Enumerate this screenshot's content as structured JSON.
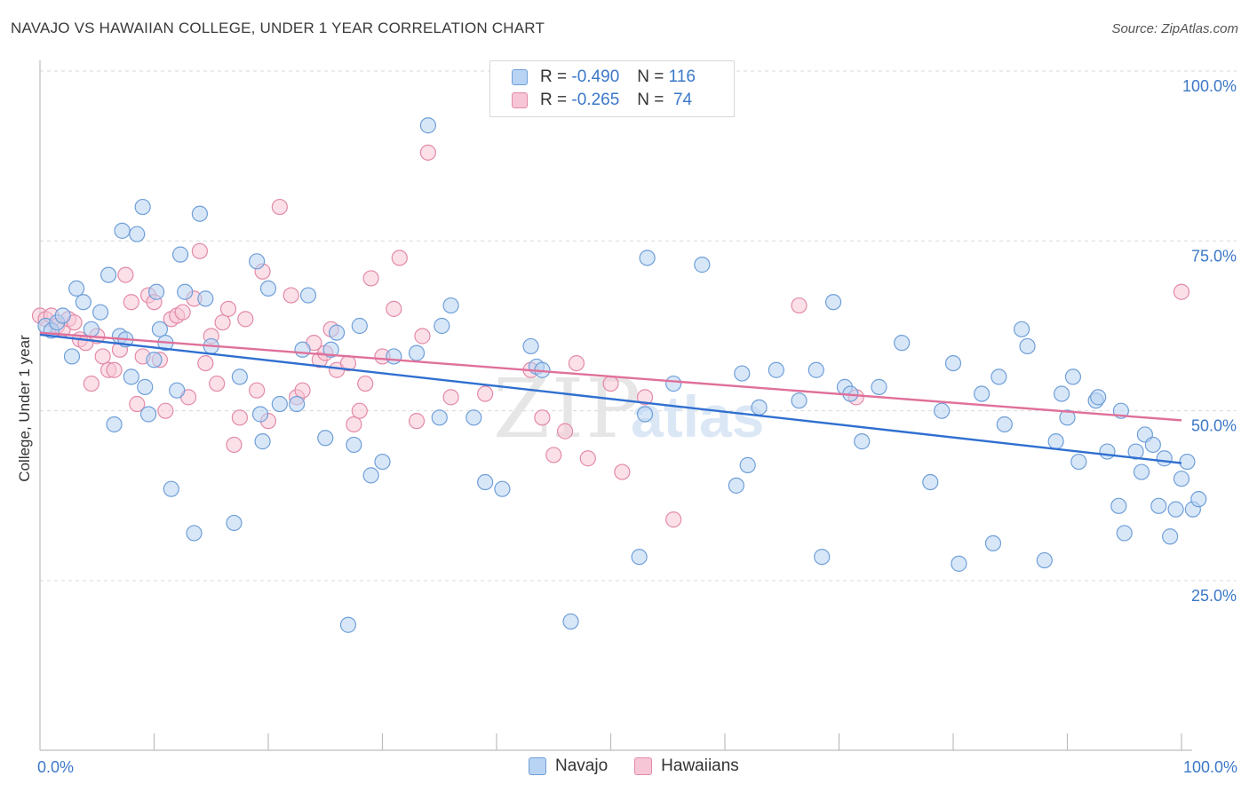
{
  "title": "NAVAJO VS HAWAIIAN COLLEGE, UNDER 1 YEAR CORRELATION CHART",
  "source": "Source: ZipAtlas.com",
  "legend": {
    "navajo": {
      "r_label": "R = ",
      "r_value": "-0.490",
      "n_label": "N = ",
      "n_value": "116"
    },
    "hawaiians": {
      "r_label": "R = ",
      "r_value": "-0.265",
      "n_label": "N = ",
      "n_value": "74"
    }
  },
  "colors": {
    "navajo_fill": "#b8d3f3",
    "navajo_stroke": "#6f9fd8",
    "navajo_line": "#2f6fd0",
    "hawaiians_fill": "#f7c6d6",
    "hawaiians_stroke": "#e38aa8",
    "hawaiians_line": "#e0709a",
    "tick_label": "#3b78c8"
  },
  "chart_data": {
    "type": "scatter",
    "title": "NAVAJO VS HAWAIIAN COLLEGE, UNDER 1 YEAR CORRELATION CHART",
    "xlabel": "",
    "ylabel": "College, Under 1 year",
    "xlim": [
      0,
      100
    ],
    "ylim": [
      0,
      105
    ],
    "x_ticks": [
      "0.0%",
      "100.0%"
    ],
    "y_ticks": [
      {
        "value": 25,
        "label": "25.0%"
      },
      {
        "value": 50,
        "label": "50.0%"
      },
      {
        "value": 75,
        "label": "75.0%"
      },
      {
        "value": 100,
        "label": "100.0%"
      }
    ],
    "grid": true,
    "legend_position": "top-center",
    "series": [
      {
        "name": "Navajo",
        "trend": {
          "x": [
            0,
            100
          ],
          "y": [
            61.2,
            42.3
          ]
        },
        "points": [
          [
            0.5,
            62.5
          ],
          [
            1,
            61.8
          ],
          [
            1.5,
            63
          ],
          [
            2,
            64
          ],
          [
            2.8,
            58
          ],
          [
            3.2,
            68
          ],
          [
            3.8,
            66
          ],
          [
            4.5,
            62
          ],
          [
            5.3,
            64.5
          ],
          [
            6,
            70
          ],
          [
            6.5,
            48
          ],
          [
            7,
            61
          ],
          [
            7.2,
            76.5
          ],
          [
            7.5,
            60.5
          ],
          [
            8,
            55
          ],
          [
            8.5,
            76
          ],
          [
            9.2,
            53.5
          ],
          [
            9,
            80
          ],
          [
            9.5,
            49.5
          ],
          [
            10,
            57.5
          ],
          [
            10.2,
            67.5
          ],
          [
            10.5,
            62
          ],
          [
            11,
            60
          ],
          [
            11.5,
            38.5
          ],
          [
            12,
            53
          ],
          [
            12.3,
            73
          ],
          [
            12.7,
            67.5
          ],
          [
            13.5,
            32
          ],
          [
            14,
            79
          ],
          [
            14.5,
            66.5
          ],
          [
            15,
            59.5
          ],
          [
            17,
            33.5
          ],
          [
            17.5,
            55
          ],
          [
            19,
            72
          ],
          [
            19.3,
            49.5
          ],
          [
            19.5,
            45.5
          ],
          [
            20,
            68
          ],
          [
            21,
            51
          ],
          [
            22.5,
            51
          ],
          [
            23,
            59
          ],
          [
            23.5,
            67
          ],
          [
            25,
            46
          ],
          [
            25.5,
            59
          ],
          [
            26,
            61.5
          ],
          [
            27,
            18.5
          ],
          [
            27.5,
            45
          ],
          [
            28,
            62.5
          ],
          [
            29,
            40.5
          ],
          [
            30,
            42.5
          ],
          [
            31,
            58
          ],
          [
            33,
            58.5
          ],
          [
            34,
            92
          ],
          [
            35,
            49
          ],
          [
            35.2,
            62.5
          ],
          [
            36,
            65.5
          ],
          [
            38,
            49
          ],
          [
            39,
            39.5
          ],
          [
            40.5,
            38.5
          ],
          [
            43,
            59.5
          ],
          [
            43.5,
            56.5
          ],
          [
            44,
            56
          ],
          [
            46.5,
            19
          ],
          [
            52.5,
            28.5
          ],
          [
            53,
            49.5
          ],
          [
            53.2,
            72.5
          ],
          [
            55.5,
            54
          ],
          [
            58,
            71.5
          ],
          [
            61,
            39
          ],
          [
            61.5,
            55.5
          ],
          [
            62,
            42
          ],
          [
            63,
            50.5
          ],
          [
            64.5,
            56
          ],
          [
            66.5,
            51.5
          ],
          [
            68,
            56
          ],
          [
            68.5,
            28.5
          ],
          [
            69.5,
            66
          ],
          [
            70.5,
            53.5
          ],
          [
            71,
            52.5
          ],
          [
            72,
            45.5
          ],
          [
            73.5,
            53.5
          ],
          [
            75.5,
            60
          ],
          [
            78,
            39.5
          ],
          [
            79,
            50
          ],
          [
            80,
            57
          ],
          [
            80.5,
            27.5
          ],
          [
            82.5,
            52.5
          ],
          [
            83.5,
            30.5
          ],
          [
            84,
            55
          ],
          [
            84.5,
            48
          ],
          [
            86,
            62
          ],
          [
            86.5,
            59.5
          ],
          [
            88,
            28
          ],
          [
            89,
            45.5
          ],
          [
            89.5,
            52.5
          ],
          [
            90,
            49
          ],
          [
            90.5,
            55
          ],
          [
            91,
            42.5
          ],
          [
            92.5,
            51.5
          ],
          [
            92.7,
            52
          ],
          [
            93.5,
            44
          ],
          [
            94.5,
            36
          ],
          [
            94.7,
            50
          ],
          [
            95,
            32
          ],
          [
            96,
            44
          ],
          [
            96.5,
            41
          ],
          [
            96.8,
            46.5
          ],
          [
            97.5,
            45
          ],
          [
            98,
            36
          ],
          [
            98.5,
            43
          ],
          [
            99,
            31.5
          ],
          [
            99.5,
            35.5
          ],
          [
            100,
            40
          ],
          [
            100.5,
            42.5
          ],
          [
            101,
            35.5
          ],
          [
            101.5,
            37
          ]
        ]
      },
      {
        "name": "Hawaiians",
        "trend": {
          "x": [
            0,
            100
          ],
          "y": [
            61.5,
            48.6
          ]
        },
        "points": [
          [
            0,
            64
          ],
          [
            0.5,
            63.5
          ],
          [
            1,
            64
          ],
          [
            1.5,
            62.5
          ],
          [
            2,
            62
          ],
          [
            2.5,
            63.5
          ],
          [
            3,
            63
          ],
          [
            3.5,
            60.5
          ],
          [
            4,
            60
          ],
          [
            4.5,
            54
          ],
          [
            5,
            61
          ],
          [
            5.5,
            58
          ],
          [
            6,
            56
          ],
          [
            6.5,
            56
          ],
          [
            7,
            59
          ],
          [
            7.5,
            70
          ],
          [
            8,
            66
          ],
          [
            8.5,
            51
          ],
          [
            9,
            58
          ],
          [
            9.5,
            67
          ],
          [
            10,
            66
          ],
          [
            10.5,
            57.5
          ],
          [
            11,
            50
          ],
          [
            11.5,
            63.5
          ],
          [
            12,
            64
          ],
          [
            12.5,
            64.5
          ],
          [
            13,
            52
          ],
          [
            13.5,
            66.5
          ],
          [
            14,
            73.5
          ],
          [
            14.5,
            57
          ],
          [
            15,
            61
          ],
          [
            15.5,
            54
          ],
          [
            16,
            63
          ],
          [
            16.5,
            65
          ],
          [
            17,
            45
          ],
          [
            17.5,
            49
          ],
          [
            18,
            63.5
          ],
          [
            19,
            53
          ],
          [
            19.5,
            70.5
          ],
          [
            20,
            48.5
          ],
          [
            21,
            80
          ],
          [
            22,
            67
          ],
          [
            22.5,
            52
          ],
          [
            23,
            53
          ],
          [
            24,
            60
          ],
          [
            24.5,
            57.5
          ],
          [
            25,
            58.5
          ],
          [
            25.5,
            62
          ],
          [
            26,
            56
          ],
          [
            27,
            57
          ],
          [
            27.5,
            48
          ],
          [
            28,
            50
          ],
          [
            28.5,
            54
          ],
          [
            29,
            69.5
          ],
          [
            30,
            58
          ],
          [
            31,
            65
          ],
          [
            31.5,
            72.5
          ],
          [
            33,
            48.5
          ],
          [
            33.5,
            61
          ],
          [
            34,
            88
          ],
          [
            36,
            52
          ],
          [
            39,
            52.5
          ],
          [
            43,
            56
          ],
          [
            44,
            49
          ],
          [
            45,
            43.5
          ],
          [
            46,
            47
          ],
          [
            47,
            57
          ],
          [
            48,
            43
          ],
          [
            50,
            54
          ],
          [
            51,
            41
          ],
          [
            53,
            52
          ],
          [
            55.5,
            34
          ],
          [
            66.5,
            65.5
          ],
          [
            71.5,
            52
          ],
          [
            100,
            67.5
          ]
        ]
      }
    ]
  }
}
